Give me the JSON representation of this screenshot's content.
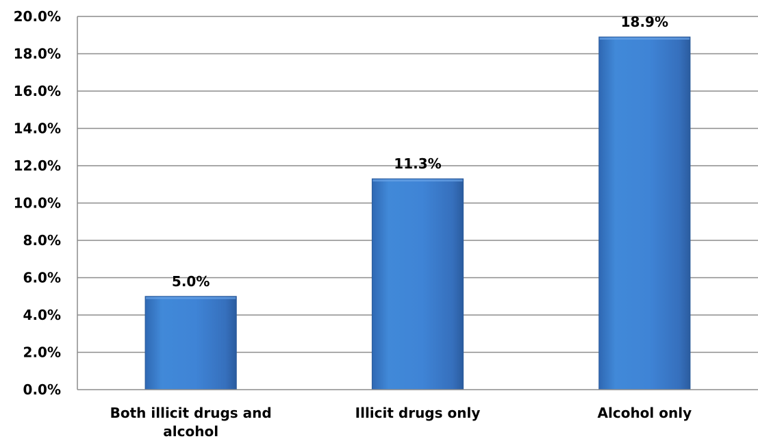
{
  "chart_data": {
    "type": "bar",
    "categories": [
      [
        "Both illicit drugs and",
        "alcohol"
      ],
      [
        "Illicit drugs only"
      ],
      [
        "Alcohol only"
      ]
    ],
    "values": [
      5.0,
      11.3,
      18.9
    ],
    "data_labels": [
      "5.0%",
      "11.3%",
      "18.9%"
    ],
    "ylim": [
      0,
      20
    ],
    "yticks": [
      0,
      2,
      4,
      6,
      8,
      10,
      12,
      14,
      16,
      18,
      20
    ],
    "ytick_labels": [
      "0.0%",
      "2.0%",
      "4.0%",
      "6.0%",
      "8.0%",
      "10.0%",
      "12.0%",
      "14.0%",
      "16.0%",
      "18.0%",
      "20.0%"
    ],
    "title": "",
    "xlabel": "",
    "ylabel": "",
    "grid": true,
    "legend": "none",
    "bar_color": "#3f7fd0",
    "bar_edge_color": "#2a5a9a"
  }
}
